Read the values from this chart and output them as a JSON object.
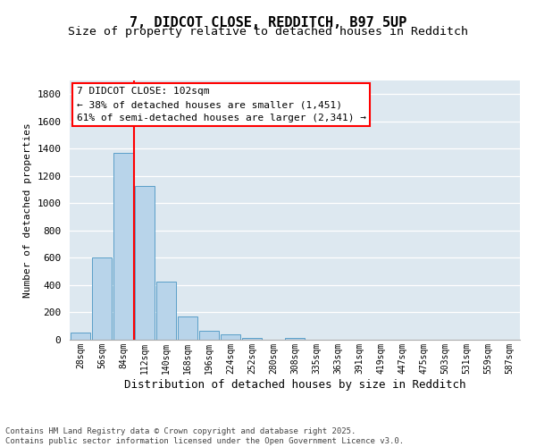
{
  "title": "7, DIDCOT CLOSE, REDDITCH, B97 5UP",
  "subtitle": "Size of property relative to detached houses in Redditch",
  "xlabel": "Distribution of detached houses by size in Redditch",
  "ylabel": "Number of detached properties",
  "bar_values": [
    50,
    605,
    1370,
    1130,
    425,
    170,
    65,
    40,
    15,
    0,
    15,
    0,
    0,
    0,
    0,
    0,
    0,
    0,
    0,
    0,
    0
  ],
  "categories": [
    "28sqm",
    "56sqm",
    "84sqm",
    "112sqm",
    "140sqm",
    "168sqm",
    "196sqm",
    "224sqm",
    "252sqm",
    "280sqm",
    "308sqm",
    "335sqm",
    "363sqm",
    "391sqm",
    "419sqm",
    "447sqm",
    "475sqm",
    "503sqm",
    "531sqm",
    "559sqm",
    "587sqm"
  ],
  "bar_color": "#b8d4ea",
  "bar_edge_color": "#5a9fc8",
  "vline_x": 2.5,
  "vline_color": "red",
  "annotation_box_text": "7 DIDCOT CLOSE: 102sqm\n← 38% of detached houses are smaller (1,451)\n61% of semi-detached houses are larger (2,341) →",
  "box_color": "white",
  "box_edge_color": "red",
  "ylim": [
    0,
    1900
  ],
  "yticks": [
    0,
    200,
    400,
    600,
    800,
    1000,
    1200,
    1400,
    1600,
    1800
  ],
  "bg_color": "#dde8f0",
  "grid_color": "white",
  "footer": "Contains HM Land Registry data © Crown copyright and database right 2025.\nContains public sector information licensed under the Open Government Licence v3.0.",
  "title_fontsize": 11,
  "subtitle_fontsize": 9.5,
  "annotation_fontsize": 8,
  "footer_fontsize": 6.5,
  "ylabel_fontsize": 8,
  "xlabel_fontsize": 9
}
